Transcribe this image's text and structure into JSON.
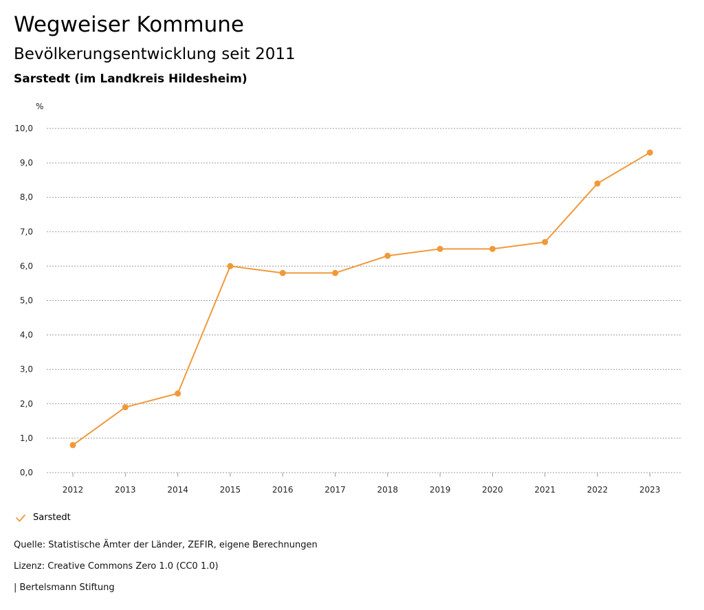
{
  "header": {
    "title": "Wegweiser Kommune",
    "subtitle": "Bevölkerungsentwicklung seit 2011",
    "region": "Sarstedt (im Landkreis Hildesheim)"
  },
  "chart_data": {
    "type": "line",
    "title": "Bevölkerungsentwicklung seit 2011",
    "xlabel": "",
    "ylabel": "%",
    "categories": [
      "2012",
      "2013",
      "2014",
      "2015",
      "2016",
      "2017",
      "2018",
      "2019",
      "2020",
      "2021",
      "2022",
      "2023"
    ],
    "series": [
      {
        "name": "Sarstedt",
        "color": "#f0993a",
        "values": [
          0.8,
          1.9,
          2.3,
          6.0,
          5.8,
          5.8,
          6.3,
          6.5,
          6.5,
          6.7,
          8.4,
          9.3
        ]
      }
    ],
    "ylim": [
      0,
      10
    ],
    "yticks": [
      0,
      1,
      2,
      3,
      4,
      5,
      6,
      7,
      8,
      9,
      10
    ],
    "ytick_labels": [
      "0,0",
      "1,0",
      "2,0",
      "3,0",
      "4,0",
      "5,0",
      "6,0",
      "7,0",
      "8,0",
      "9,0",
      "10,0"
    ],
    "grid": true,
    "legend": "bottom-left"
  },
  "legend": {
    "label": "Sarstedt",
    "icon": "checkmark-icon",
    "color": "#f0993a"
  },
  "footer": {
    "source": "Quelle: Statistische Ämter der Länder, ZEFIR, eigene Berechnungen",
    "license": "Lizenz: Creative Commons Zero 1.0 (CC0 1.0)",
    "publisher": "| Bertelsmann Stiftung"
  }
}
